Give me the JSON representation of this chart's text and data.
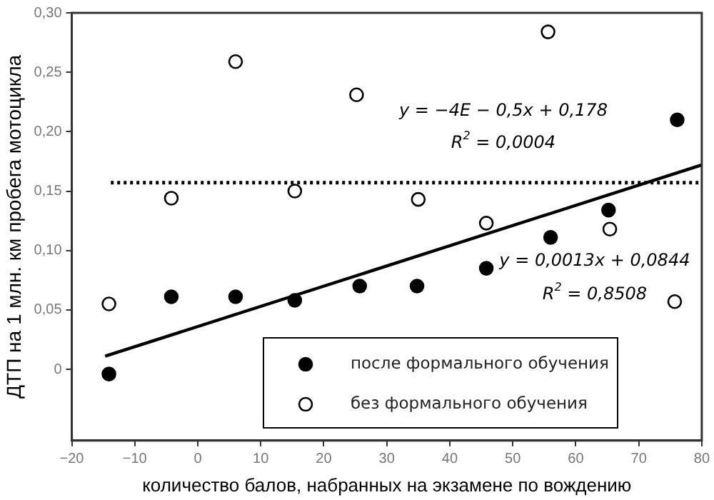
{
  "chart_data": {
    "type": "scatter",
    "xlabel": "количество балов, набранных на экзамене по вождению",
    "ylabel": "ДТП на 1 млн. км пробега мотоцикла",
    "xlim": [
      -20,
      80
    ],
    "xticks": [
      {
        "value": -20,
        "label": "−20"
      },
      {
        "value": -10,
        "label": "−10"
      },
      0,
      10,
      20,
      30,
      40,
      50,
      60,
      70,
      80
    ],
    "ylim": [
      -0.06,
      0.3
    ],
    "yticks": [
      0,
      {
        "value": 0.05,
        "label": "0,05"
      },
      {
        "value": 0.1,
        "label": "0,10"
      },
      {
        "value": 0.15,
        "label": "0,15"
      },
      {
        "value": 0.2,
        "label": "0,20"
      },
      {
        "value": 0.25,
        "label": "0,25"
      },
      {
        "value": 0.3,
        "label": "0,30"
      }
    ],
    "grid": false,
    "legend": "bottom right",
    "marker": "circle",
    "series": [
      {
        "name": "после формального обучения",
        "type": "scatter",
        "color": "#000000",
        "x": [
          -14.1,
          -4.2,
          6.0,
          15.4,
          25.7,
          34.8,
          45.8,
          56.0,
          65.2,
          76.1
        ],
        "values": [
          -0.004,
          0.061,
          0.061,
          0.058,
          0.07,
          0.07,
          0.085,
          0.111,
          0.134,
          0.21
        ]
      },
      {
        "type": "line",
        "color": "#000000",
        "line_style": "solid",
        "marker": "none",
        "x": [
          -14.7,
          80
        ],
        "values": [
          0.011,
          0.172
        ]
      },
      {
        "name": "без формального обучения",
        "type": "scatter",
        "color": "#ffffff",
        "x": [
          -14.1,
          -4.2,
          6.0,
          15.4,
          25.2,
          35.0,
          45.8,
          55.6,
          65.4,
          75.7
        ],
        "values": [
          0.055,
          0.144,
          0.259,
          0.15,
          0.231,
          0.143,
          0.123,
          0.284,
          0.118,
          0.057
        ]
      },
      {
        "type": "line",
        "color": "#000000",
        "line_style": "dotted",
        "marker": "none",
        "x": [
          -13.8,
          80
        ],
        "values": [
          0.157,
          0.157
        ]
      }
    ],
    "annotations": [
      "y = −4E − 0,5x + 0,178",
      "R$^{2}$ = 0,0004",
      "y = 0,0013x + 0,0844",
      "R$^{2}$ = 0,8508"
    ]
  }
}
